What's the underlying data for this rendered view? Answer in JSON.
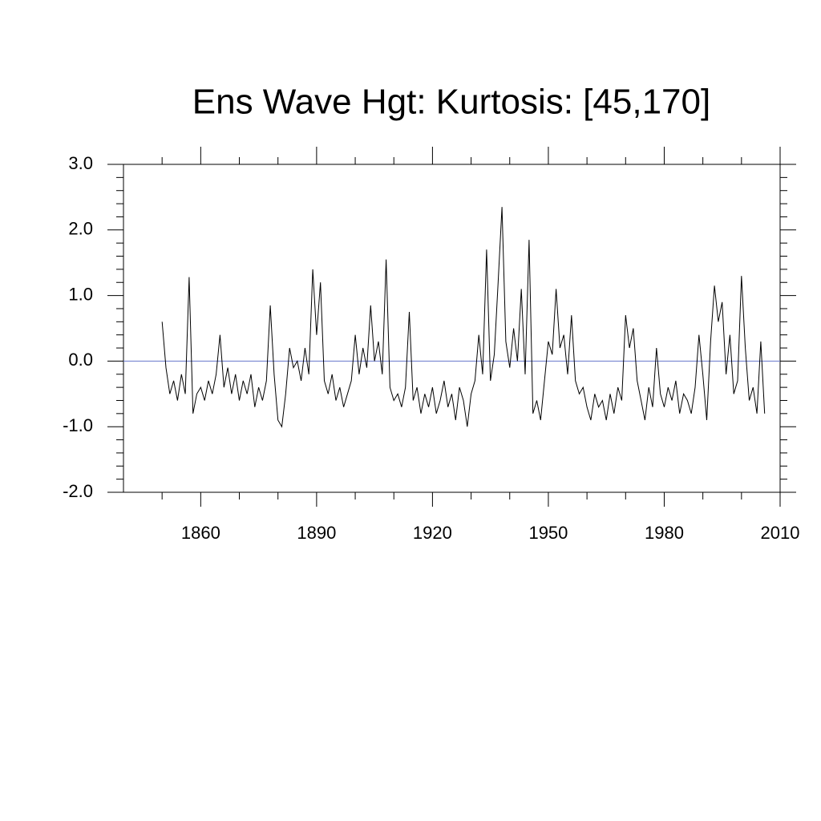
{
  "chart_data": {
    "type": "line",
    "title": "Ens Wave Hgt: Kurtosis: [45,170]",
    "xlim": [
      1840,
      2010
    ],
    "xticks": [
      1860,
      1890,
      1920,
      1950,
      1980,
      2010
    ],
    "xticks_minor": [
      1850,
      1870,
      1880,
      1900,
      1910,
      1930,
      1940,
      1960,
      1970,
      1990,
      2000
    ],
    "ylim": [
      -2,
      3
    ],
    "yticks": [
      {
        "value": -2,
        "label": "-2.0"
      },
      {
        "value": -1,
        "label": "-1.0"
      },
      {
        "value": 0,
        "label": "0.0"
      },
      {
        "value": 1,
        "label": "1.0"
      },
      {
        "value": 2,
        "label": "2.0"
      },
      {
        "value": 3,
        "label": "3.0"
      }
    ],
    "yticks_minor": [
      -1.8,
      -1.6,
      -1.4,
      -1.2,
      -0.8,
      -0.6,
      -0.4,
      -0.2,
      0.2,
      0.4,
      0.6,
      0.8,
      1.2,
      1.4,
      1.6,
      1.8,
      2.2,
      2.4,
      2.6,
      2.8
    ],
    "reference_line": {
      "value": 0,
      "color": "#6677cc"
    },
    "x": [
      1850,
      1851,
      1852,
      1853,
      1854,
      1855,
      1856,
      1857,
      1858,
      1859,
      1860,
      1861,
      1862,
      1863,
      1864,
      1865,
      1866,
      1867,
      1868,
      1869,
      1870,
      1871,
      1872,
      1873,
      1874,
      1875,
      1876,
      1877,
      1878,
      1879,
      1880,
      1881,
      1882,
      1883,
      1884,
      1885,
      1886,
      1887,
      1888,
      1889,
      1890,
      1891,
      1892,
      1893,
      1894,
      1895,
      1896,
      1897,
      1898,
      1899,
      1900,
      1901,
      1902,
      1903,
      1904,
      1905,
      1906,
      1907,
      1908,
      1909,
      1910,
      1911,
      1912,
      1913,
      1914,
      1915,
      1916,
      1917,
      1918,
      1919,
      1920,
      1921,
      1922,
      1923,
      1924,
      1925,
      1926,
      1927,
      1928,
      1929,
      1930,
      1931,
      1932,
      1933,
      1934,
      1935,
      1936,
      1937,
      1938,
      1939,
      1940,
      1941,
      1942,
      1943,
      1944,
      1945,
      1946,
      1947,
      1948,
      1949,
      1950,
      1951,
      1952,
      1953,
      1954,
      1955,
      1956,
      1957,
      1958,
      1959,
      1960,
      1961,
      1962,
      1963,
      1964,
      1965,
      1966,
      1967,
      1968,
      1969,
      1970,
      1971,
      1972,
      1973,
      1974,
      1975,
      1976,
      1977,
      1978,
      1979,
      1980,
      1981,
      1982,
      1983,
      1984,
      1985,
      1986,
      1987,
      1988,
      1989,
      1990,
      1991,
      1992,
      1993,
      1994,
      1995,
      1996,
      1997,
      1998,
      1999,
      2000,
      2001,
      2002,
      2003,
      2004,
      2005,
      2006
    ],
    "series": [
      {
        "color": "#000000",
        "values": [
          0.6,
          -0.1,
          -0.5,
          -0.3,
          -0.6,
          -0.2,
          -0.5,
          1.28,
          -0.8,
          -0.5,
          -0.4,
          -0.6,
          -0.3,
          -0.5,
          -0.2,
          0.4,
          -0.4,
          -0.1,
          -0.5,
          -0.2,
          -0.6,
          -0.3,
          -0.5,
          -0.2,
          -0.7,
          -0.4,
          -0.6,
          -0.3,
          0.85,
          -0.2,
          -0.9,
          -1.0,
          -0.5,
          0.2,
          -0.1,
          0.0,
          -0.3,
          0.2,
          -0.2,
          1.4,
          0.4,
          1.2,
          -0.3,
          -0.5,
          -0.2,
          -0.6,
          -0.4,
          -0.7,
          -0.5,
          -0.3,
          0.4,
          -0.2,
          0.2,
          -0.1,
          0.85,
          0.0,
          0.3,
          -0.2,
          1.55,
          -0.4,
          -0.6,
          -0.5,
          -0.7,
          -0.4,
          0.75,
          -0.6,
          -0.4,
          -0.8,
          -0.5,
          -0.7,
          -0.4,
          -0.8,
          -0.6,
          -0.3,
          -0.7,
          -0.5,
          -0.9,
          -0.4,
          -0.6,
          -1.0,
          -0.5,
          -0.3,
          0.4,
          -0.2,
          1.7,
          -0.3,
          0.1,
          1.2,
          2.35,
          0.3,
          -0.1,
          0.5,
          0.0,
          1.1,
          -0.2,
          1.85,
          -0.8,
          -0.6,
          -0.9,
          -0.3,
          0.3,
          0.1,
          1.1,
          0.2,
          0.4,
          -0.2,
          0.7,
          -0.3,
          -0.5,
          -0.4,
          -0.7,
          -0.9,
          -0.5,
          -0.7,
          -0.6,
          -0.9,
          -0.5,
          -0.8,
          -0.4,
          -0.6,
          0.7,
          0.2,
          0.5,
          -0.3,
          -0.6,
          -0.9,
          -0.4,
          -0.7,
          0.2,
          -0.5,
          -0.7,
          -0.4,
          -0.6,
          -0.3,
          -0.8,
          -0.5,
          -0.6,
          -0.8,
          -0.4,
          0.4,
          -0.2,
          -0.9,
          0.3,
          1.15,
          0.6,
          0.9,
          -0.2,
          0.4,
          -0.5,
          -0.3,
          1.3,
          0.2,
          -0.6,
          -0.4,
          -0.8,
          0.3,
          -0.8
        ]
      }
    ]
  }
}
